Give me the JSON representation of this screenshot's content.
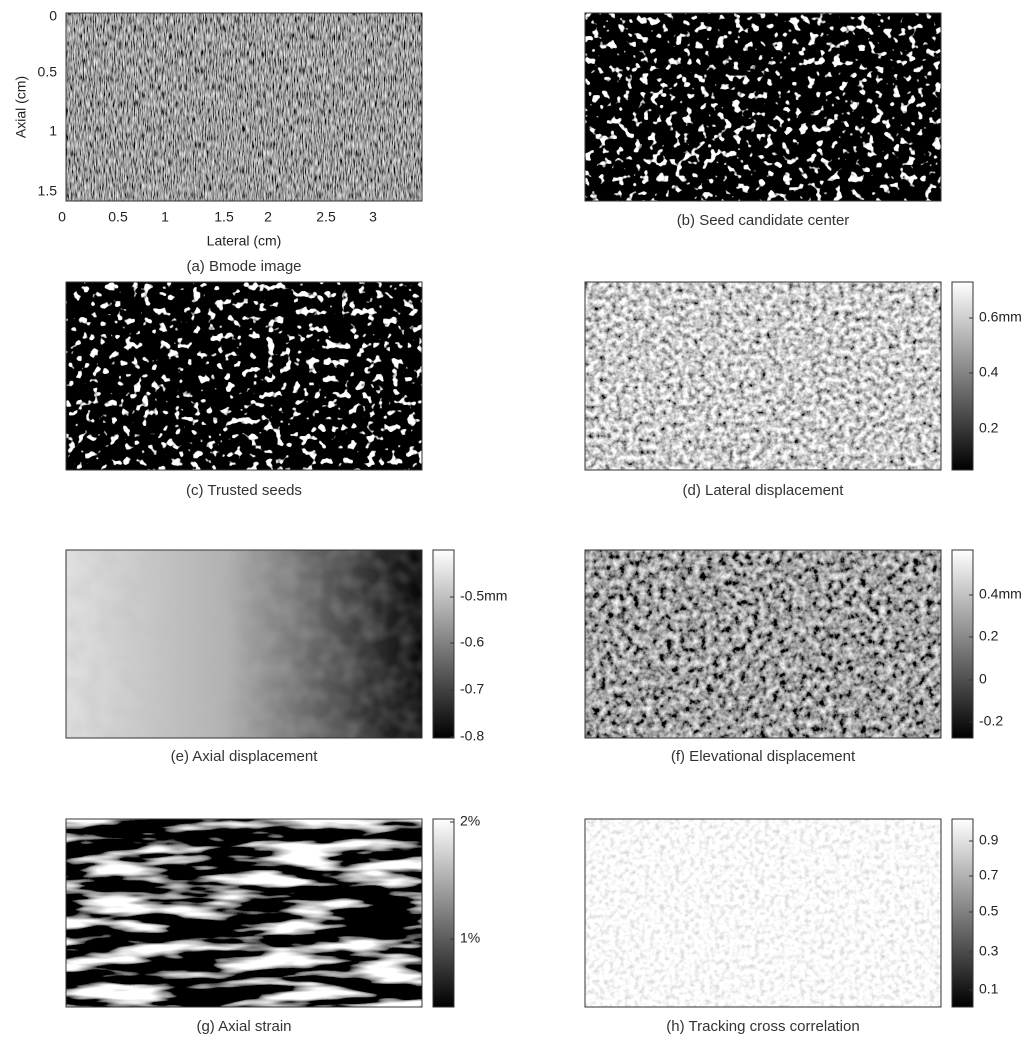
{
  "panels": [
    {
      "caption": "(a) Bmode image",
      "ylabel": "Axial (cm)",
      "xlabel": "Lateral (cm)",
      "yticks": [
        "0",
        "0.5",
        "1",
        "1.5"
      ],
      "xticks": [
        "0",
        "0.5",
        "1",
        "1.5",
        "2",
        "2.5",
        "3"
      ]
    },
    {
      "caption": "(b) Seed candidate center"
    },
    {
      "caption": "(c) Trusted seeds"
    },
    {
      "caption": "(d) Lateral displacement",
      "colorbar_ticks": [
        "0.6mm",
        "0.4",
        "0.2"
      ]
    },
    {
      "caption": "(e) Axial displacement",
      "colorbar_ticks": [
        "-0.5mm",
        "-0.6",
        "-0.7",
        "-0.8"
      ]
    },
    {
      "caption": "(f) Elevational displacement",
      "colorbar_ticks": [
        "0.4mm",
        "0.2",
        "0",
        "-0.2"
      ]
    },
    {
      "caption": "(g) Axial strain",
      "colorbar_ticks": [
        "2%",
        "1%"
      ]
    },
    {
      "caption": "(h) Tracking cross correlation",
      "colorbar_ticks": [
        "0.9",
        "0.7",
        "0.5",
        "0.3",
        "0.1"
      ]
    }
  ]
}
